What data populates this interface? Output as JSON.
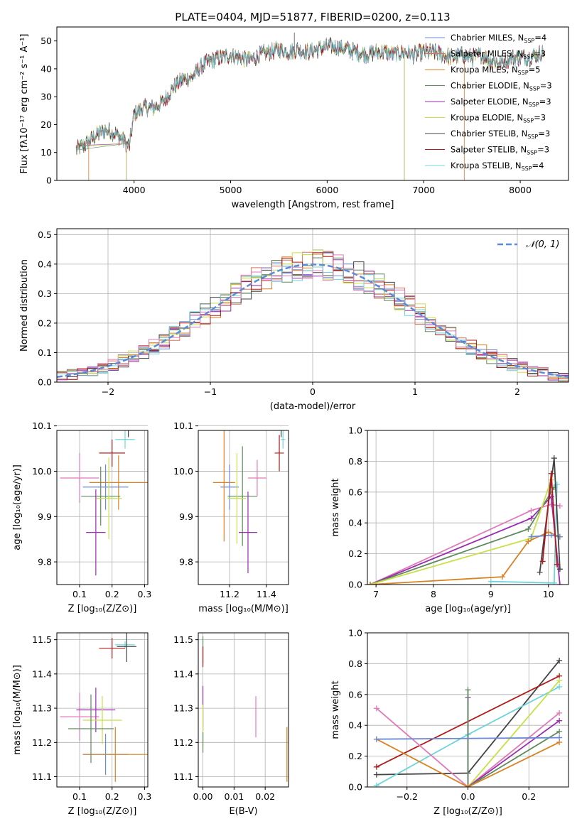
{
  "figure_title": "PLATE=0404, MJD=51877, FIBERID=0200, z=0.113",
  "colors": {
    "chabrier_miles": "#6b8ad6",
    "salpeter_miles": "#e0705a",
    "kroupa_miles": "#d98222",
    "chabrier_elodie": "#5f8a5f",
    "salpeter_elodie": "#9a2db0",
    "kroupa_elodie": "#c8e048",
    "chabrier_stelib": "#444444",
    "salpeter_stelib": "#b01c1c",
    "kroupa_stelib": "#6dd4dc",
    "pink": "#e07ab8",
    "normal_curve": "#5b8bd6"
  },
  "chart_data": [
    {
      "id": "spectrum",
      "type": "line",
      "xlabel": "wavelength [Angstrom, rest frame]",
      "ylabel": "Flux [fλ10⁻¹⁷ erg cm⁻² s⁻¹ A⁻¹]",
      "xlim": [
        3200,
        8500
      ],
      "ylim": [
        0,
        55
      ],
      "x_ticks": [
        4000,
        5000,
        6000,
        7000,
        8000
      ],
      "y_ticks": [
        0,
        10,
        20,
        30,
        40,
        50
      ],
      "grid": false,
      "legend_position": "top-right",
      "continuum": {
        "x": [
          3400,
          3500,
          3600,
          3700,
          3800,
          3900,
          3950,
          4000,
          4100,
          4200,
          4300,
          4400,
          4500,
          4600,
          4700,
          4800,
          4900,
          5000,
          5100,
          5200,
          5300,
          5400,
          5500,
          5600,
          5700,
          5800,
          5900,
          6000,
          6100,
          6200,
          6300,
          6400,
          6500,
          6600,
          6700,
          6800,
          6900,
          7000,
          7100,
          7200,
          7300,
          7400,
          7500,
          7600,
          7700,
          7800,
          7900,
          8000,
          8100,
          8250
        ],
        "y": [
          11,
          13,
          16,
          18,
          17,
          14,
          12,
          24,
          26,
          26,
          28,
          33,
          36,
          37,
          41,
          43,
          44,
          45,
          44,
          43,
          45,
          46,
          47,
          46,
          47,
          46,
          47,
          48,
          48,
          47,
          46,
          45,
          46,
          46,
          45,
          46,
          45,
          46,
          46,
          45,
          44,
          45,
          44,
          45,
          43,
          42,
          44,
          44,
          44,
          46
        ]
      },
      "series": [
        {
          "name": "Chabrier MILES, N_SSP=4",
          "label_main": "Chabrier MILES, N",
          "label_sub": "SSP",
          "label_tail": "=4",
          "color_key": "chabrier_miles"
        },
        {
          "name": "Salpeter MILES, N_SSP=3",
          "label_main": "Salpeter MILES, N",
          "label_sub": "SSP",
          "label_tail": "=3",
          "color_key": "salpeter_miles"
        },
        {
          "name": "Kroupa MILES, N_SSP=5",
          "label_main": "Kroupa MILES, N",
          "label_sub": "SSP",
          "label_tail": "=5",
          "color_key": "kroupa_miles"
        },
        {
          "name": "Chabrier ELODIE, N_SSP=3",
          "label_main": "Chabrier ELODIE, N",
          "label_sub": "SSP",
          "label_tail": "=3",
          "color_key": "chabrier_elodie"
        },
        {
          "name": "Salpeter ELODIE, N_SSP=3",
          "label_main": "Salpeter ELODIE, N",
          "label_sub": "SSP",
          "label_tail": "=3",
          "color_key": "salpeter_elodie"
        },
        {
          "name": "Kroupa ELODIE, N_SSP=3",
          "label_main": "Kroupa ELODIE, N",
          "label_sub": "SSP",
          "label_tail": "=3",
          "color_key": "kroupa_elodie"
        },
        {
          "name": "Chabrier STELIB, N_SSP=3",
          "label_main": "Chabrier STELIB, N",
          "label_sub": "SSP",
          "label_tail": "=3",
          "color_key": "chabrier_stelib"
        },
        {
          "name": "Salpeter STELIB, N_SSP=3",
          "label_main": "Salpeter STELIB, N",
          "label_sub": "SSP",
          "label_tail": "=3",
          "color_key": "salpeter_stelib"
        },
        {
          "name": "Kroupa STELIB, N_SSP=4",
          "label_main": "Kroupa STELIB, N",
          "label_sub": "SSP",
          "label_tail": "=4",
          "color_key": "kroupa_stelib"
        }
      ],
      "model_ranges": [
        {
          "color_key": "salpeter_miles",
          "x_start": 3530,
          "x_end": 7420
        },
        {
          "color_key": "kroupa_miles",
          "x_start": 3530,
          "x_end": 7420
        },
        {
          "color_key": "kroupa_elodie",
          "x_start": 3920,
          "x_end": 6800
        },
        {
          "color_key": "chabrier_elodie",
          "x_start": 3920,
          "x_end": 6800
        },
        {
          "color_key": "salpeter_elodie",
          "x_start": 3920,
          "x_end": 6800
        }
      ]
    },
    {
      "id": "residuals",
      "type": "histogram",
      "xlabel": "(data-model)/error",
      "ylabel": "Normed distribution",
      "xlim": [
        -2.5,
        2.5
      ],
      "ylim": [
        0,
        0.52
      ],
      "x_ticks": [
        -2,
        -1,
        0,
        1,
        2
      ],
      "y_ticks": [
        0.0,
        0.1,
        0.2,
        0.3,
        0.4,
        0.5
      ],
      "grid": true,
      "legend_position": "top-right",
      "legend_label": "𝒩(0, 1)",
      "bin_width": 0.1
    },
    {
      "id": "age_vs_Z",
      "type": "errorbar",
      "xlabel": "Z [log₁₀(Z/Z⊙)]",
      "ylabel": "age  [log₁₀(age/yr)]",
      "xlim": [
        0.03,
        0.31
      ],
      "ylim": [
        9.75,
        10.09
      ],
      "x_ticks": [
        0.1,
        0.2,
        0.3
      ],
      "y_ticks": [
        9.8,
        9.9,
        10.0,
        10.1
      ],
      "grid": true,
      "points": [
        {
          "color_key": "kroupa_stelib",
          "x": 0.24,
          "xerr": 0.03,
          "y": 10.07,
          "yerr": 0.02
        },
        {
          "color_key": "chabrier_stelib",
          "x": 0.25,
          "xerr": 0.05,
          "y": 10.1,
          "yerr": 0.025
        },
        {
          "color_key": "salpeter_stelib",
          "x": 0.2,
          "xerr": 0.04,
          "y": 10.04,
          "yerr": 0.03
        },
        {
          "color_key": "pink",
          "x": 0.1,
          "xerr": 0.06,
          "y": 9.985,
          "yerr": 0.055
        },
        {
          "color_key": "kroupa_miles",
          "x": 0.22,
          "xerr": 0.09,
          "y": 9.975,
          "yerr": 0.06
        },
        {
          "color_key": "chabrier_miles",
          "x": 0.18,
          "xerr": 0.07,
          "y": 9.965,
          "yerr": 0.05
        },
        {
          "color_key": "chabrier_elodie",
          "x": 0.165,
          "xerr": 0.06,
          "y": 9.945,
          "yerr": 0.065
        },
        {
          "color_key": "kroupa_elodie",
          "x": 0.19,
          "xerr": 0.04,
          "y": 9.94,
          "yerr": 0.09
        },
        {
          "color_key": "salpeter_elodie",
          "x": 0.15,
          "xerr": 0.03,
          "y": 9.865,
          "yerr": 0.095
        }
      ]
    },
    {
      "id": "age_vs_mass",
      "type": "errorbar",
      "xlabel": "mass [log₁₀(M/M⊙)]",
      "xlim": [
        11.03,
        11.52
      ],
      "ylim": [
        9.75,
        10.09
      ],
      "x_ticks": [
        11.2,
        11.4
      ],
      "y_ticks": [
        9.8,
        9.9,
        10.0,
        10.1
      ],
      "grid": true,
      "points": [
        {
          "color_key": "kroupa_stelib",
          "x": 11.49,
          "xerr": 0.012,
          "y": 10.07,
          "yerr": 0.02
        },
        {
          "color_key": "chabrier_stelib",
          "x": 11.48,
          "xerr": 0.03,
          "y": 10.1,
          "yerr": 0.025
        },
        {
          "color_key": "salpeter_stelib",
          "x": 11.47,
          "xerr": 0.025,
          "y": 10.04,
          "yerr": 0.04
        },
        {
          "color_key": "pink",
          "x": 11.35,
          "xerr": 0.05,
          "y": 9.985,
          "yerr": 0.04
        },
        {
          "color_key": "kroupa_miles",
          "x": 11.17,
          "xerr": 0.06,
          "y": 9.975,
          "yerr": 0.13
        },
        {
          "color_key": "chabrier_miles",
          "x": 11.2,
          "xerr": 0.05,
          "y": 9.965,
          "yerr": 0.05
        },
        {
          "color_key": "chabrier_elodie",
          "x": 11.27,
          "xerr": 0.08,
          "y": 9.945,
          "yerr": 0.11
        },
        {
          "color_key": "kroupa_elodie",
          "x": 11.24,
          "xerr": 0.05,
          "y": 9.94,
          "yerr": 0.1
        },
        {
          "color_key": "salpeter_elodie",
          "x": 11.3,
          "xerr": 0.05,
          "y": 9.865,
          "yerr": 0.09
        }
      ]
    },
    {
      "id": "weight_vs_age",
      "type": "line",
      "xlabel": "age  [log₁₀(age/yr)]",
      "ylabel": "mass weight",
      "xlim": [
        6.85,
        10.35
      ],
      "ylim": [
        0.0,
        1.0
      ],
      "x_ticks": [
        7,
        8,
        9,
        10
      ],
      "y_ticks": [
        0.0,
        0.2,
        0.4,
        0.6,
        0.8,
        1.0
      ],
      "grid": true,
      "series": [
        {
          "color_key": "pink",
          "x": [
            6.9,
            9.7,
            10.05,
            10.2
          ],
          "y": [
            0.0,
            0.48,
            0.52,
            0.51
          ]
        },
        {
          "color_key": "salpeter_elodie",
          "x": [
            6.9,
            9.7,
            10.05,
            10.2
          ],
          "y": [
            0.0,
            0.43,
            0.57,
            0.0
          ]
        },
        {
          "color_key": "chabrier_elodie",
          "x": [
            6.9,
            9.65,
            10.1
          ],
          "y": [
            0.0,
            0.36,
            0.63
          ]
        },
        {
          "color_key": "kroupa_elodie",
          "x": [
            6.9,
            9.7,
            10.05
          ],
          "y": [
            0.0,
            0.3,
            0.68
          ]
        },
        {
          "color_key": "kroupa_miles",
          "x": [
            6.9,
            9.2,
            9.65,
            10.0,
            10.2
          ],
          "y": [
            0.0,
            0.05,
            0.28,
            0.34,
            0.31
          ]
        },
        {
          "color_key": "chabrier_miles",
          "x": [
            9.7,
            10.05,
            10.2
          ],
          "y": [
            0.31,
            0.32,
            0.31
          ]
        },
        {
          "color_key": "kroupa_stelib",
          "x": [
            9.0,
            10.1,
            10.15
          ],
          "y": [
            0.02,
            0.01,
            0.65
          ]
        },
        {
          "color_key": "chabrier_stelib",
          "x": [
            9.85,
            10.1,
            10.2
          ],
          "y": [
            0.08,
            0.82,
            0.1
          ]
        },
        {
          "color_key": "salpeter_stelib",
          "x": [
            9.9,
            10.05,
            10.15
          ],
          "y": [
            0.15,
            0.72,
            0.13
          ]
        }
      ]
    },
    {
      "id": "mass_vs_Z",
      "type": "errorbar",
      "xlabel": "Z [log₁₀(Z/Z⊙)]",
      "ylabel": "mass [log₁₀(M/M⊙)]",
      "xlim": [
        0.03,
        0.31
      ],
      "ylim": [
        11.07,
        11.52
      ],
      "x_ticks": [
        0.1,
        0.2,
        0.3
      ],
      "y_ticks": [
        11.1,
        11.2,
        11.3,
        11.4,
        11.5
      ],
      "grid": true,
      "points": [
        {
          "color_key": "kroupa_stelib",
          "x": 0.24,
          "xerr": 0.03,
          "y": 11.485,
          "yerr": 0.01
        },
        {
          "color_key": "chabrier_stelib",
          "x": 0.245,
          "xerr": 0.03,
          "y": 11.48,
          "yerr": 0.045
        },
        {
          "color_key": "salpeter_stelib",
          "x": 0.2,
          "xerr": 0.04,
          "y": 11.475,
          "yerr": 0.03
        },
        {
          "color_key": "pink",
          "x": 0.1,
          "xerr": 0.06,
          "y": 11.275,
          "yerr": 0.07
        },
        {
          "color_key": "salpeter_elodie",
          "x": 0.15,
          "xerr": 0.06,
          "y": 11.295,
          "yerr": 0.065
        },
        {
          "color_key": "kroupa_elodie",
          "x": 0.17,
          "xerr": 0.06,
          "y": 11.265,
          "yerr": 0.07
        },
        {
          "color_key": "chabrier_elodie",
          "x": 0.135,
          "xerr": 0.07,
          "y": 11.24,
          "yerr": 0.1
        },
        {
          "color_key": "chabrier_miles",
          "x": 0.18,
          "xerr": 0.07,
          "y": 11.165,
          "yerr": 0.06
        },
        {
          "color_key": "kroupa_miles",
          "x": 0.21,
          "xerr": 0.1,
          "y": 11.165,
          "yerr": 0.08
        }
      ]
    },
    {
      "id": "mass_vs_EBV",
      "type": "errorbar",
      "xlabel": "E(B-V)",
      "xlim": [
        -0.0015,
        0.0275
      ],
      "ylim": [
        11.07,
        11.52
      ],
      "x_ticks": [
        0.0,
        0.01,
        0.02
      ],
      "y_ticks": [
        11.1,
        11.2,
        11.3,
        11.4,
        11.5
      ],
      "grid": true,
      "points": [
        {
          "color_key": "chabrier_elodie",
          "x": 0.0,
          "xerr": 0.0,
          "y": 11.47,
          "yerr": 0.04
        },
        {
          "color_key": "salpeter_stelib",
          "x": 0.0,
          "xerr": 0.0,
          "y": 11.45,
          "yerr": 0.03
        },
        {
          "color_key": "salpeter_elodie",
          "x": 0.0,
          "xerr": 0.0,
          "y": 11.3,
          "yerr": 0.065
        },
        {
          "color_key": "kroupa_elodie",
          "x": 0.0,
          "xerr": 0.0,
          "y": 11.25,
          "yerr": 0.06
        },
        {
          "color_key": "chabrier_elodie",
          "x": 0.0,
          "xerr": 0.0,
          "y": 11.2,
          "yerr": 0.03
        },
        {
          "color_key": "pink",
          "x": 0.017,
          "xerr": 0.0,
          "y": 11.275,
          "yerr": 0.06
        },
        {
          "color_key": "kroupa_miles",
          "x": 0.027,
          "xerr": 0.0,
          "y": 11.165,
          "yerr": 0.08
        }
      ]
    },
    {
      "id": "weight_vs_Z",
      "type": "line",
      "xlabel": "Z [log₁₀(Z/Z⊙)]",
      "ylabel": "mass weight",
      "xlim": [
        -0.33,
        0.33
      ],
      "ylim": [
        0.0,
        1.0
      ],
      "x_ticks": [
        -0.2,
        0.0,
        0.2
      ],
      "y_ticks": [
        0.0,
        0.2,
        0.4,
        0.6,
        0.8,
        1.0
      ],
      "grid": true,
      "series": [
        {
          "color_key": "chabrier_stelib",
          "x": [
            -0.3,
            0.0,
            0.3
          ],
          "y": [
            0.08,
            0.09,
            0.82
          ]
        },
        {
          "color_key": "salpeter_stelib",
          "x": [
            -0.3,
            0.3
          ],
          "y": [
            0.13,
            0.72
          ]
        },
        {
          "color_key": "kroupa_stelib",
          "x": [
            -0.3,
            0.0,
            0.3
          ],
          "y": [
            0.01,
            0.34,
            0.65
          ]
        },
        {
          "color_key": "kroupa_elodie",
          "x": [
            0.0,
            0.3
          ],
          "y": [
            0.0,
            0.69
          ]
        },
        {
          "color_key": "pink",
          "x": [
            -0.3,
            0.0,
            0.3
          ],
          "y": [
            0.51,
            0.0,
            0.48
          ]
        },
        {
          "color_key": "salpeter_elodie",
          "x": [
            0.0,
            0.0,
            0.3
          ],
          "y": [
            0.58,
            0.0,
            0.43
          ]
        },
        {
          "color_key": "chabrier_elodie",
          "x": [
            0.0,
            0.0,
            0.3
          ],
          "y": [
            0.63,
            0.0,
            0.36
          ]
        },
        {
          "color_key": "kroupa_miles",
          "x": [
            -0.3,
            0.0,
            0.3
          ],
          "y": [
            0.31,
            0.0,
            0.29
          ]
        },
        {
          "color_key": "chabrier_miles",
          "x": [
            -0.3,
            0.3
          ],
          "y": [
            0.31,
            0.32
          ]
        }
      ]
    }
  ]
}
